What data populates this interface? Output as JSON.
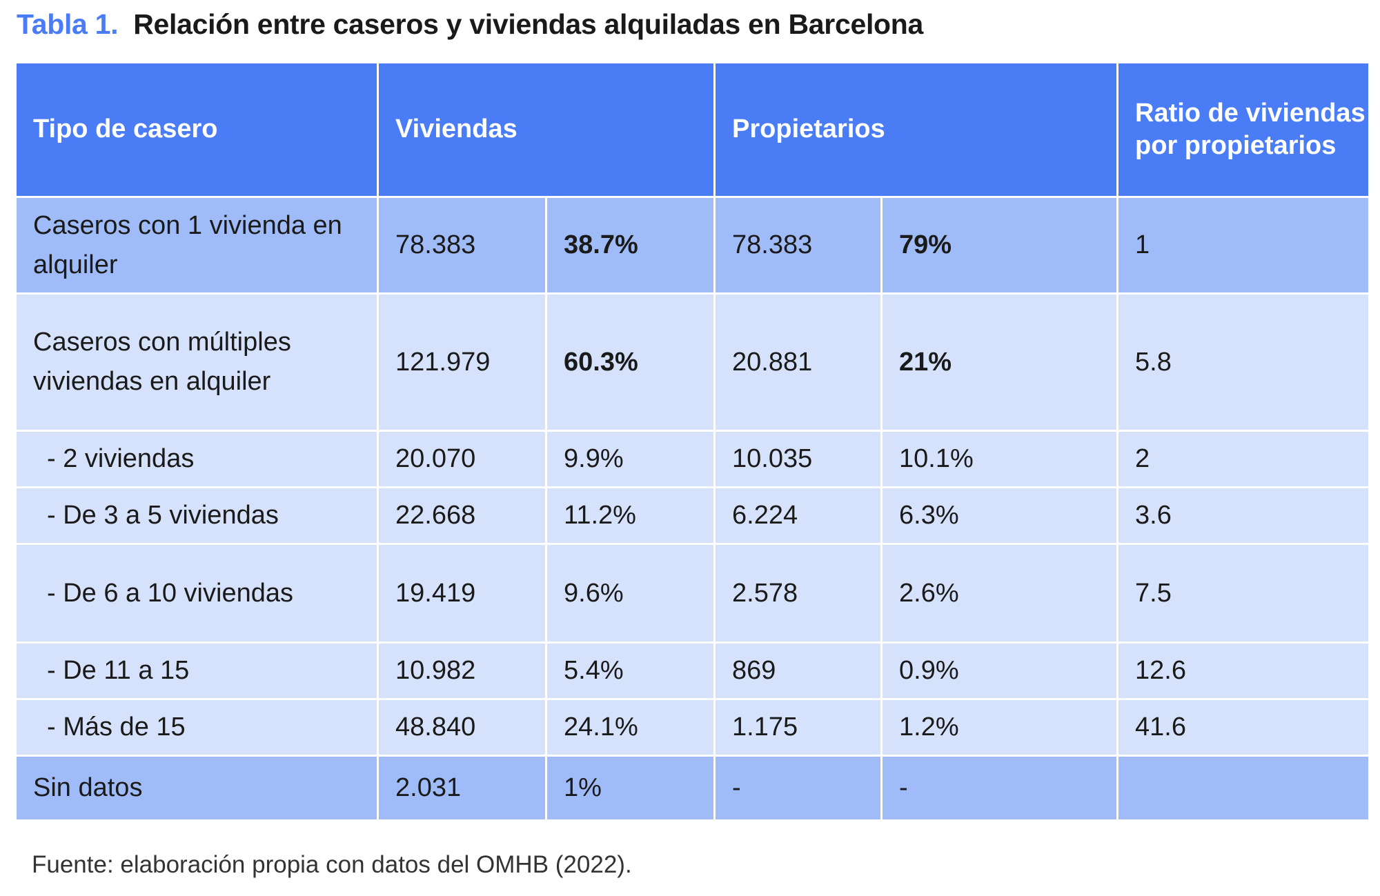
{
  "title": {
    "label": "Tabla 1.",
    "text": "Relación entre caseros y viviendas alquiladas en Barcelona"
  },
  "colors": {
    "header": "#4a7cf5",
    "row_dark": "#a0bcf8",
    "row_light": "#d6e2fc"
  },
  "headers": [
    "Tipo de casero",
    "Viviendas",
    "Propietarios",
    "Ratio de viviendas por propietarios"
  ],
  "rows": [
    {
      "type": "Caseros con 1 vivienda en alquiler",
      "viv": "78.383",
      "viv_pct": "38.7%",
      "prop": "78.383",
      "prop_pct": "79%",
      "ratio": "1",
      "style": "dark",
      "bold_pct": true,
      "sub": false
    },
    {
      "type": "Caseros con múltiples viviendas en alquiler",
      "viv": "121.979",
      "viv_pct": "60.3%",
      "prop": "20.881",
      "prop_pct": "21%",
      "ratio": "5.8",
      "style": "light",
      "bold_pct": true,
      "sub": false
    },
    {
      "type": "- 2 viviendas",
      "viv": "20.070",
      "viv_pct": "9.9%",
      "prop": "10.035",
      "prop_pct": "10.1%",
      "ratio": "2",
      "style": "light",
      "bold_pct": false,
      "sub": true
    },
    {
      "type": "- De 3 a 5 viviendas",
      "viv": "22.668",
      "viv_pct": "11.2%",
      "prop": "6.224",
      "prop_pct": "6.3%",
      "ratio": "3.6",
      "style": "light",
      "bold_pct": false,
      "sub": true
    },
    {
      "type": "- De 6 a 10 viviendas",
      "viv": "19.419",
      "viv_pct": "9.6%",
      "prop": "2.578",
      "prop_pct": "2.6%",
      "ratio": "7.5",
      "style": "light",
      "bold_pct": false,
      "sub": true
    },
    {
      "type": "- De 11 a 15",
      "viv": "10.982",
      "viv_pct": "5.4%",
      "prop": "869",
      "prop_pct": "0.9%",
      "ratio": "12.6",
      "style": "light",
      "bold_pct": false,
      "sub": true
    },
    {
      "type": "- Más de 15",
      "viv": "48.840",
      "viv_pct": "24.1%",
      "prop": "1.175",
      "prop_pct": "1.2%",
      "ratio": "41.6",
      "style": "light",
      "bold_pct": false,
      "sub": true
    },
    {
      "type": "Sin datos",
      "viv": "2.031",
      "viv_pct": "1%",
      "prop": "-",
      "prop_pct": "-",
      "ratio": "",
      "style": "dark",
      "bold_pct": false,
      "sub": false
    }
  ],
  "footnote": "Fuente: elaboración propia con datos del OMHB (2022)."
}
